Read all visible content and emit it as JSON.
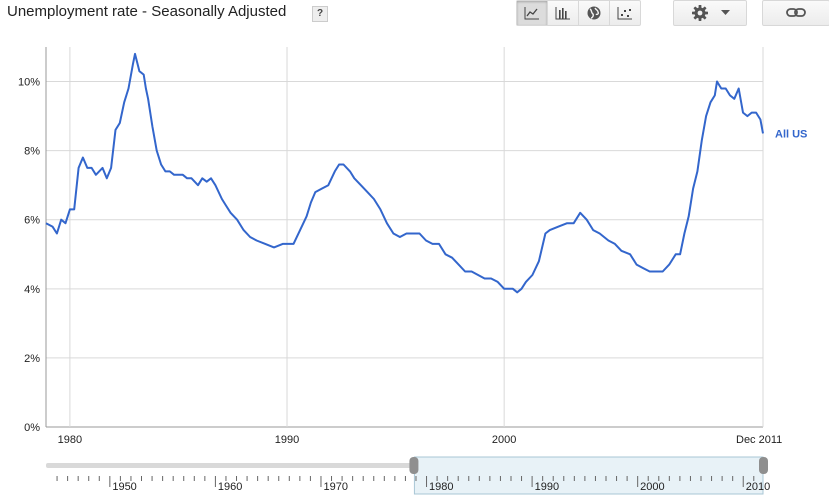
{
  "header": {
    "title": "Unemployment rate - Seasonally Adjusted",
    "help_label": "?"
  },
  "toolbar": {
    "icons": [
      "line-chart-icon",
      "bar-chart-icon",
      "map-globe-icon",
      "scatter-icon",
      "gear-icon",
      "chevron-down-icon",
      "link-icon"
    ],
    "active": "line-chart-icon"
  },
  "colors": {
    "series": "#3366cc",
    "grid": "#d9d9d9",
    "axis": "#999999",
    "selection": "#e8f2f7"
  },
  "chart_data": {
    "type": "line",
    "title": "Unemployment rate - Seasonally Adjusted",
    "ylim": [
      0,
      11
    ],
    "xlim": [
      1978.9,
      2011.92
    ],
    "y_ticks": [
      0,
      2,
      4,
      6,
      8,
      10
    ],
    "y_tick_labels": [
      "0%",
      "2%",
      "4%",
      "6%",
      "8%",
      "10%"
    ],
    "x_ticks": [
      1980,
      1990,
      2000
    ],
    "x_tick_labels": [
      "1980",
      "1990",
      "2000"
    ],
    "x_end_label": "Dec 2011",
    "grid": true,
    "legend_position": "right-inline",
    "series": [
      {
        "name": "All US",
        "points": [
          [
            1978.9,
            5.9
          ],
          [
            1979.2,
            5.8
          ],
          [
            1979.4,
            5.6
          ],
          [
            1979.6,
            6.0
          ],
          [
            1979.8,
            5.9
          ],
          [
            1980.0,
            6.3
          ],
          [
            1980.2,
            6.3
          ],
          [
            1980.4,
            7.5
          ],
          [
            1980.6,
            7.8
          ],
          [
            1980.8,
            7.5
          ],
          [
            1981.0,
            7.5
          ],
          [
            1981.2,
            7.3
          ],
          [
            1981.5,
            7.5
          ],
          [
            1981.7,
            7.2
          ],
          [
            1981.9,
            7.5
          ],
          [
            1982.1,
            8.6
          ],
          [
            1982.3,
            8.8
          ],
          [
            1982.5,
            9.4
          ],
          [
            1982.7,
            9.8
          ],
          [
            1982.9,
            10.5
          ],
          [
            1983.0,
            10.8
          ],
          [
            1983.2,
            10.3
          ],
          [
            1983.4,
            10.2
          ],
          [
            1983.5,
            9.8
          ],
          [
            1983.6,
            9.5
          ],
          [
            1983.8,
            8.7
          ],
          [
            1984.0,
            8.0
          ],
          [
            1984.2,
            7.6
          ],
          [
            1984.4,
            7.4
          ],
          [
            1984.6,
            7.4
          ],
          [
            1984.8,
            7.3
          ],
          [
            1985.0,
            7.3
          ],
          [
            1985.2,
            7.3
          ],
          [
            1985.4,
            7.2
          ],
          [
            1985.6,
            7.2
          ],
          [
            1985.9,
            7.0
          ],
          [
            1986.1,
            7.2
          ],
          [
            1986.3,
            7.1
          ],
          [
            1986.5,
            7.2
          ],
          [
            1986.7,
            7.0
          ],
          [
            1987.0,
            6.6
          ],
          [
            1987.2,
            6.4
          ],
          [
            1987.4,
            6.2
          ],
          [
            1987.7,
            6.0
          ],
          [
            1988.0,
            5.7
          ],
          [
            1988.3,
            5.5
          ],
          [
            1988.6,
            5.4
          ],
          [
            1989.0,
            5.3
          ],
          [
            1989.4,
            5.2
          ],
          [
            1989.8,
            5.3
          ],
          [
            1990.0,
            5.3
          ],
          [
            1990.3,
            5.3
          ],
          [
            1990.6,
            5.7
          ],
          [
            1990.9,
            6.1
          ],
          [
            1991.1,
            6.5
          ],
          [
            1991.3,
            6.8
          ],
          [
            1991.6,
            6.9
          ],
          [
            1991.9,
            7.0
          ],
          [
            1992.2,
            7.4
          ],
          [
            1992.4,
            7.6
          ],
          [
            1992.6,
            7.6
          ],
          [
            1992.9,
            7.4
          ],
          [
            1993.1,
            7.2
          ],
          [
            1993.4,
            7.0
          ],
          [
            1993.7,
            6.8
          ],
          [
            1994.0,
            6.6
          ],
          [
            1994.3,
            6.3
          ],
          [
            1994.6,
            5.9
          ],
          [
            1994.9,
            5.6
          ],
          [
            1995.2,
            5.5
          ],
          [
            1995.5,
            5.6
          ],
          [
            1995.8,
            5.6
          ],
          [
            1996.1,
            5.6
          ],
          [
            1996.4,
            5.4
          ],
          [
            1996.7,
            5.3
          ],
          [
            1997.0,
            5.3
          ],
          [
            1997.3,
            5.0
          ],
          [
            1997.6,
            4.9
          ],
          [
            1997.9,
            4.7
          ],
          [
            1998.2,
            4.5
          ],
          [
            1998.5,
            4.5
          ],
          [
            1998.8,
            4.4
          ],
          [
            1999.1,
            4.3
          ],
          [
            1999.4,
            4.3
          ],
          [
            1999.7,
            4.2
          ],
          [
            2000.0,
            4.0
          ],
          [
            2000.2,
            4.0
          ],
          [
            2000.4,
            4.0
          ],
          [
            2000.6,
            3.9
          ],
          [
            2000.8,
            4.0
          ],
          [
            2001.0,
            4.2
          ],
          [
            2001.3,
            4.4
          ],
          [
            2001.6,
            4.8
          ],
          [
            2001.9,
            5.6
          ],
          [
            2002.1,
            5.7
          ],
          [
            2002.5,
            5.8
          ],
          [
            2002.9,
            5.9
          ],
          [
            2003.2,
            5.9
          ],
          [
            2003.5,
            6.2
          ],
          [
            2003.8,
            6.0
          ],
          [
            2004.1,
            5.7
          ],
          [
            2004.4,
            5.6
          ],
          [
            2004.8,
            5.4
          ],
          [
            2005.1,
            5.3
          ],
          [
            2005.4,
            5.1
          ],
          [
            2005.8,
            5.0
          ],
          [
            2006.1,
            4.7
          ],
          [
            2006.4,
            4.6
          ],
          [
            2006.7,
            4.5
          ],
          [
            2007.0,
            4.5
          ],
          [
            2007.3,
            4.5
          ],
          [
            2007.6,
            4.7
          ],
          [
            2007.9,
            5.0
          ],
          [
            2008.1,
            5.0
          ],
          [
            2008.3,
            5.6
          ],
          [
            2008.5,
            6.1
          ],
          [
            2008.7,
            6.9
          ],
          [
            2008.9,
            7.4
          ],
          [
            2009.1,
            8.3
          ],
          [
            2009.3,
            9.0
          ],
          [
            2009.5,
            9.4
          ],
          [
            2009.7,
            9.6
          ],
          [
            2009.8,
            10.0
          ],
          [
            2010.0,
            9.8
          ],
          [
            2010.2,
            9.8
          ],
          [
            2010.4,
            9.6
          ],
          [
            2010.6,
            9.5
          ],
          [
            2010.8,
            9.8
          ],
          [
            2011.0,
            9.1
          ],
          [
            2011.2,
            9.0
          ],
          [
            2011.4,
            9.1
          ],
          [
            2011.6,
            9.1
          ],
          [
            2011.8,
            8.9
          ],
          [
            2011.92,
            8.5
          ]
        ]
      }
    ]
  },
  "navigator": {
    "xlim": [
      1944,
      2011.92
    ],
    "ticks": [
      1950,
      1960,
      1970,
      1980,
      1990,
      2000,
      2010
    ],
    "tick_labels": [
      "1950",
      "1960",
      "1970",
      "1980",
      "1990",
      "2000",
      "2010"
    ],
    "selection": [
      1978.9,
      2011.92
    ]
  }
}
